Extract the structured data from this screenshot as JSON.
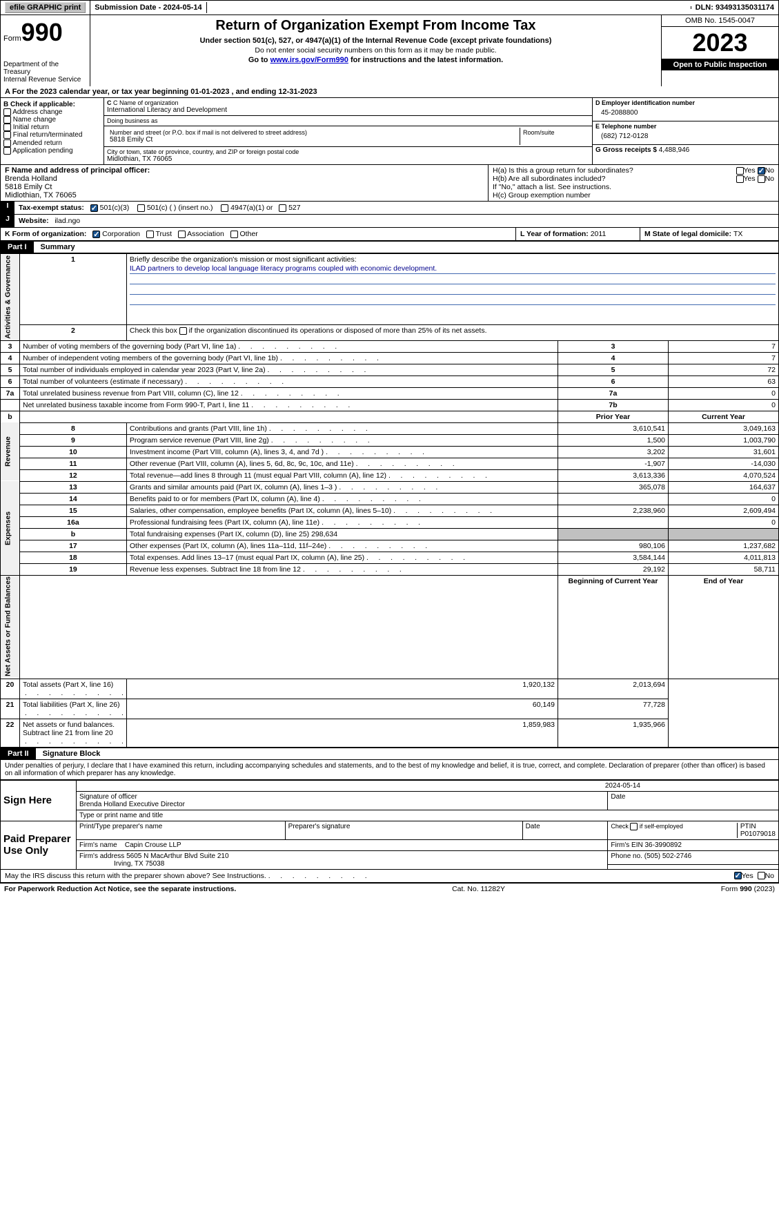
{
  "topbar": {
    "efile": "efile GRAPHIC print",
    "submission_label": "Submission Date - ",
    "submission_date": "2024-05-14",
    "dln_label": "DLN: ",
    "dln": "93493135031174"
  },
  "header": {
    "form_word": "Form",
    "form_num": "990",
    "dept": "Department of the Treasury\nInternal Revenue Service",
    "title": "Return of Organization Exempt From Income Tax",
    "subtitle": "Under section 501(c), 527, or 4947(a)(1) of the Internal Revenue Code (except private foundations)",
    "warn": "Do not enter social security numbers on this form as it may be made public.",
    "goto_pre": "Go to ",
    "goto_link": "www.irs.gov/Form990",
    "goto_post": " for instructions and the latest information.",
    "omb": "OMB No. 1545-0047",
    "year": "2023",
    "open": "Open to Public Inspection"
  },
  "rowA": {
    "text_pre": "A For the 2023 calendar year, or tax year beginning ",
    "begin": "01-01-2023",
    "mid": "  , and ending ",
    "end": "12-31-2023"
  },
  "boxB": {
    "title": "B Check if applicable:",
    "items": [
      "Address change",
      "Name change",
      "Initial return",
      "Final return/terminated",
      "Amended return",
      "Application pending"
    ]
  },
  "boxC": {
    "name_lbl": "C Name of organization",
    "name": "International Literacy and Development",
    "dba_lbl": "Doing business as",
    "dba": "",
    "addr_lbl": "Number and street (or P.O. box if mail is not delivered to street address)",
    "addr": "5818 Emily Ct",
    "room_lbl": "Room/suite",
    "city_lbl": "City or town, state or province, country, and ZIP or foreign postal code",
    "city": "Midlothian, TX  76065"
  },
  "boxD": {
    "lbl": "D Employer identification number",
    "val": "45-2088800"
  },
  "boxE": {
    "lbl": "E Telephone number",
    "val": "(682) 712-0128"
  },
  "boxG": {
    "lbl": "G Gross receipts $ ",
    "val": "4,488,946"
  },
  "boxF": {
    "lbl": "F  Name and address of principal officer:",
    "name": "Brenda Holland",
    "addr1": "5818 Emily Ct",
    "addr2": "Midlothian, TX  76065"
  },
  "boxH": {
    "a": "H(a)  Is this a group return for subordinates?",
    "b": "H(b)  Are all subordinates included?",
    "b_note": "If \"No,\" attach a list. See instructions.",
    "c": "H(c)  Group exemption number",
    "yes": "Yes",
    "no": "No"
  },
  "boxI": {
    "lbl": "Tax-exempt status:",
    "opts": [
      "501(c)(3)",
      "501(c) (  ) (insert no.)",
      "4947(a)(1) or",
      "527"
    ]
  },
  "boxJ": {
    "lbl": "Website:",
    "val": "ilad.ngo"
  },
  "boxK": {
    "lbl": "K Form of organization:",
    "opts": [
      "Corporation",
      "Trust",
      "Association",
      "Other"
    ]
  },
  "boxL": {
    "lbl": "L Year of formation: ",
    "val": "2011"
  },
  "boxM": {
    "lbl": "M State of legal domicile: ",
    "val": "TX"
  },
  "part1": {
    "num": "Part I",
    "title": "Summary"
  },
  "summary": {
    "q1_lbl": "Briefly describe the organization's mission or most significant activities:",
    "q1_val": "ILAD partners to develop local language literacy programs coupled with economic development.",
    "q2": "Check this box      if the organization discontinued its operations or disposed of more than 25% of its net assets.",
    "groups": {
      "gov": "Activities & Governance",
      "rev": "Revenue",
      "exp": "Expenses",
      "net": "Net Assets or Fund Balances"
    },
    "cols": {
      "prior": "Prior Year",
      "current": "Current Year",
      "boy": "Beginning of Current Year",
      "eoy": "End of Year"
    },
    "lines_gov": [
      {
        "n": "3",
        "t": "Number of voting members of the governing body (Part VI, line 1a)",
        "box": "3",
        "v": "7"
      },
      {
        "n": "4",
        "t": "Number of independent voting members of the governing body (Part VI, line 1b)",
        "box": "4",
        "v": "7"
      },
      {
        "n": "5",
        "t": "Total number of individuals employed in calendar year 2023 (Part V, line 2a)",
        "box": "5",
        "v": "72"
      },
      {
        "n": "6",
        "t": "Total number of volunteers (estimate if necessary)",
        "box": "6",
        "v": "63"
      },
      {
        "n": "7a",
        "t": "Total unrelated business revenue from Part VIII, column (C), line 12",
        "box": "7a",
        "v": "0"
      },
      {
        "n": "",
        "t": "Net unrelated business taxable income from Form 990-T, Part I, line 11",
        "box": "7b",
        "v": "0"
      }
    ],
    "lines_rev": [
      {
        "n": "8",
        "t": "Contributions and grants (Part VIII, line 1h)",
        "p": "3,610,541",
        "c": "3,049,163"
      },
      {
        "n": "9",
        "t": "Program service revenue (Part VIII, line 2g)",
        "p": "1,500",
        "c": "1,003,790"
      },
      {
        "n": "10",
        "t": "Investment income (Part VIII, column (A), lines 3, 4, and 7d )",
        "p": "3,202",
        "c": "31,601"
      },
      {
        "n": "11",
        "t": "Other revenue (Part VIII, column (A), lines 5, 6d, 8c, 9c, 10c, and 11e)",
        "p": "-1,907",
        "c": "-14,030"
      },
      {
        "n": "12",
        "t": "Total revenue—add lines 8 through 11 (must equal Part VIII, column (A), line 12)",
        "p": "3,613,336",
        "c": "4,070,524"
      }
    ],
    "lines_exp": [
      {
        "n": "13",
        "t": "Grants and similar amounts paid (Part IX, column (A), lines 1–3 )",
        "p": "365,078",
        "c": "164,637"
      },
      {
        "n": "14",
        "t": "Benefits paid to or for members (Part IX, column (A), line 4)",
        "p": "",
        "c": "0"
      },
      {
        "n": "15",
        "t": "Salaries, other compensation, employee benefits (Part IX, column (A), lines 5–10)",
        "p": "2,238,960",
        "c": "2,609,494"
      },
      {
        "n": "16a",
        "t": "Professional fundraising fees (Part IX, column (A), line 11e)",
        "p": "",
        "c": "0"
      },
      {
        "n": "b",
        "t": "Total fundraising expenses (Part IX, column (D), line 25) 298,634",
        "p": "SHADE",
        "c": "SHADE"
      },
      {
        "n": "17",
        "t": "Other expenses (Part IX, column (A), lines 11a–11d, 11f–24e)",
        "p": "980,106",
        "c": "1,237,682"
      },
      {
        "n": "18",
        "t": "Total expenses. Add lines 13–17 (must equal Part IX, column (A), line 25)",
        "p": "3,584,144",
        "c": "4,011,813"
      },
      {
        "n": "19",
        "t": "Revenue less expenses. Subtract line 18 from line 12",
        "p": "29,192",
        "c": "58,711"
      }
    ],
    "lines_net": [
      {
        "n": "20",
        "t": "Total assets (Part X, line 16)",
        "p": "1,920,132",
        "c": "2,013,694"
      },
      {
        "n": "21",
        "t": "Total liabilities (Part X, line 26)",
        "p": "60,149",
        "c": "77,728"
      },
      {
        "n": "22",
        "t": "Net assets or fund balances. Subtract line 21 from line 20",
        "p": "1,859,983",
        "c": "1,935,966"
      }
    ]
  },
  "part2": {
    "num": "Part II",
    "title": "Signature Block"
  },
  "sig": {
    "perjury": "Under penalties of perjury, I declare that I have examined this return, including accompanying schedules and statements, and to the best of my knowledge and belief, it is true, correct, and complete. Declaration of preparer (other than officer) is based on all information of which preparer has any knowledge.",
    "sign_here": "Sign Here",
    "sig_date": "2024-05-14",
    "sig_officer_lbl": "Signature of officer",
    "officer_name": "Brenda Holland Executive Director",
    "type_lbl": "Type or print name and title",
    "date_lbl": "Date",
    "paid": "Paid Preparer Use Only",
    "prep_name_lbl": "Print/Type preparer's name",
    "prep_sig_lbl": "Preparer's signature",
    "check_self": "Check       if self-employed",
    "ptin_lbl": "PTIN",
    "ptin": "P01079018",
    "firm_name_lbl": "Firm's name",
    "firm_name": "Capin Crouse LLP",
    "firm_ein_lbl": "Firm's EIN",
    "firm_ein": "36-3990892",
    "firm_addr_lbl": "Firm's address",
    "firm_addr1": "5605 N MacArthur Blvd Suite 210",
    "firm_addr2": "Irving, TX  75038",
    "phone_lbl": "Phone no.",
    "phone": "(505) 502-2746",
    "discuss": "May the IRS discuss this return with the preparer shown above? See Instructions.",
    "yes": "Yes",
    "no": "No"
  },
  "footer": {
    "left": "For Paperwork Reduction Act Notice, see the separate instructions.",
    "mid": "Cat. No. 11282Y",
    "right": "Form 990 (2023)"
  }
}
